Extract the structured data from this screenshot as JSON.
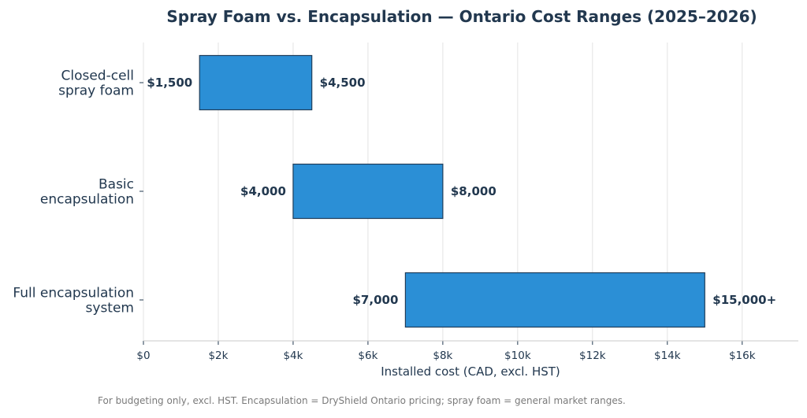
{
  "chart_data": {
    "type": "bar",
    "orientation": "horizontal",
    "subtype": "floating-range",
    "title": "Spray Foam vs. Encapsulation — Ontario Cost Ranges (2025–2026)",
    "xlabel": "Installed cost (CAD, excl. HST)",
    "ylabel": "",
    "xlim": [
      0,
      17500
    ],
    "ticks": [
      {
        "value": 0,
        "label": "$0"
      },
      {
        "value": 2000,
        "label": "$2k"
      },
      {
        "value": 4000,
        "label": "$4k"
      },
      {
        "value": 6000,
        "label": "$6k"
      },
      {
        "value": 8000,
        "label": "$8k"
      },
      {
        "value": 10000,
        "label": "$10k"
      },
      {
        "value": 12000,
        "label": "$12k"
      },
      {
        "value": 14000,
        "label": "$14k"
      },
      {
        "value": 16000,
        "label": "$16k"
      }
    ],
    "grid": "vertical",
    "bar_color": "#2b8fd6",
    "bar_edge_color": "#1f3d5a",
    "categories": [
      {
        "lines": [
          "Closed-cell",
          "spray foam"
        ],
        "low": 1500,
        "high": 4500,
        "low_label": "$1,500",
        "high_label": "$4,500"
      },
      {
        "lines": [
          "Basic",
          "encapsulation"
        ],
        "low": 4000,
        "high": 8000,
        "low_label": "$4,000",
        "high_label": "$8,000"
      },
      {
        "lines": [
          "Full encapsulation",
          "system"
        ],
        "low": 7000,
        "high": 15000,
        "low_label": "$7,000",
        "high_label": "$15,000+"
      }
    ]
  },
  "footnote": "For budgeting only, excl. HST. Encapsulation = DryShield Ontario pricing; spray foam = general market ranges."
}
